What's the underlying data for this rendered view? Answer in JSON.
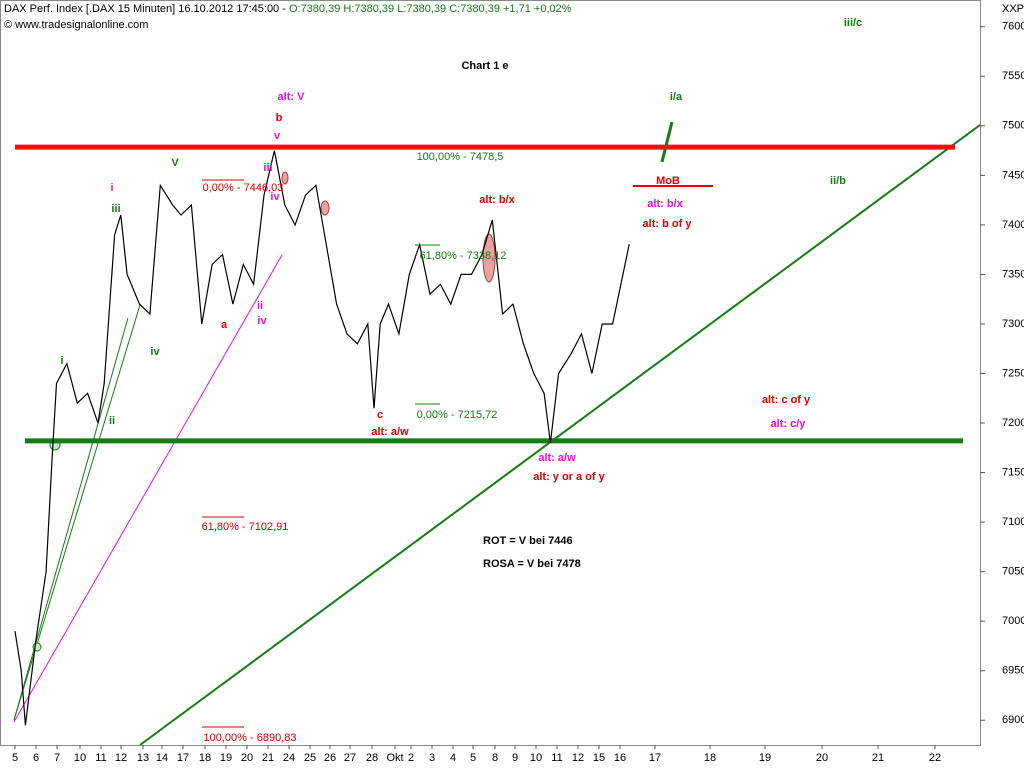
{
  "chart_data": {
    "type": "line",
    "header": "DAX Perf. Index [.DAX  15 Minuten] 16.10.2012 17:45:00 - ",
    "quote": "O:7380,39 H:7380,39 L:7380,39 C:7380,39 +1,71 +0,02%",
    "source": "© www.tradesignalonline.com",
    "axis_label": "XXP",
    "title": "Chart 1 e",
    "categories": [
      "5",
      "6",
      "7",
      "10",
      "11",
      "12",
      "13",
      "14",
      "17",
      "18",
      "19",
      "20",
      "21",
      "24",
      "25",
      "26",
      "27",
      "28",
      "Okt",
      "2",
      "3",
      "4",
      "5",
      "8",
      "9",
      "10",
      "11",
      "12",
      "15",
      "16",
      "17",
      "18",
      "19",
      "20",
      "21",
      "22"
    ],
    "ylim": [
      6875,
      7627
    ],
    "yticks": [
      6900,
      6950,
      7000,
      7050,
      7100,
      7150,
      7200,
      7250,
      7300,
      7350,
      7400,
      7450,
      7500,
      7550,
      7600
    ],
    "series": [
      {
        "name": "DAX",
        "color": "#000000",
        "x": [
          0,
          0.3,
          0.5,
          1,
          1.5,
          1.8,
          2,
          2.5,
          3,
          3.5,
          4,
          4.3,
          4.8,
          5.1,
          5.4,
          6,
          6.5,
          7,
          7.6,
          8,
          8.5,
          9,
          9.5,
          10,
          10.5,
          11,
          11.5,
          12,
          12.5,
          13,
          13.5,
          14,
          14.5,
          15,
          15.5,
          16,
          16.5,
          17,
          17.3,
          17.6,
          18,
          18.5,
          19,
          19.5,
          20,
          20.5,
          21,
          21.5,
          22,
          22.5,
          23,
          23.5,
          24,
          24.5,
          25,
          25.5,
          25.8,
          26.2,
          26.8,
          27.3,
          27.8,
          28.3,
          28.8,
          29.2,
          29.6
        ],
        "values": [
          6990,
          6950,
          6895,
          6980,
          7050,
          7170,
          7240,
          7260,
          7220,
          7230,
          7200,
          7240,
          7390,
          7410,
          7350,
          7320,
          7310,
          7440,
          7420,
          7410,
          7420,
          7300,
          7360,
          7370,
          7320,
          7360,
          7340,
          7430,
          7475,
          7420,
          7400,
          7430,
          7440,
          7380,
          7320,
          7290,
          7280,
          7300,
          7215,
          7300,
          7320,
          7290,
          7350,
          7380,
          7330,
          7340,
          7320,
          7350,
          7350,
          7370,
          7405,
          7310,
          7320,
          7280,
          7250,
          7230,
          7180,
          7250,
          7270,
          7290,
          7250,
          7300,
          7300,
          7340,
          7380.39
        ]
      }
    ],
    "levels": [
      {
        "value": 7478.5,
        "color": "#ee1111"
      },
      {
        "value": 7182,
        "color": "#137d13"
      }
    ],
    "fib_labels": [
      {
        "text": "100,00% - 7478,5",
        "color": "#137d13"
      },
      {
        "text": "0,00% - 7446,03",
        "color": "#d00000"
      },
      {
        "text": "61,80% - 7338,12",
        "color": "#137d13"
      },
      {
        "text": "0,00% - 7215,72",
        "color": "#137d13"
      },
      {
        "text": "61,80% - 7102,91",
        "color": "#d00000"
      },
      {
        "text": "100,00% - 6890,83",
        "color": "#d00000"
      }
    ],
    "annotations": [
      {
        "text": "alt: V",
        "color": "#e010e0"
      },
      {
        "text": "b",
        "color": "#e00000"
      },
      {
        "text": "v",
        "color": "#e010e0"
      },
      {
        "text": "iii",
        "color": "#e010e0"
      },
      {
        "text": "iv",
        "color": "#e010e0"
      },
      {
        "text": "V",
        "color": "#137d13"
      },
      {
        "text": "i",
        "color": "#e010e0"
      },
      {
        "text": "iii",
        "color": "#137d13"
      },
      {
        "text": "a",
        "color": "#e00000"
      },
      {
        "text": "ii",
        "color": "#e010e0"
      },
      {
        "text": "iv",
        "color": "#e010e0"
      },
      {
        "text": "iv",
        "color": "#137d13"
      },
      {
        "text": "i",
        "color": "#137d13"
      },
      {
        "text": "ii",
        "color": "#137d13"
      },
      {
        "text": "c",
        "color": "#e00000"
      },
      {
        "text": "alt: a/w",
        "color": "#e00000"
      },
      {
        "text": "alt: b/x",
        "color": "#e00000"
      },
      {
        "text": "i/a",
        "color": "#137d13"
      },
      {
        "text": "iii/c",
        "color": "#137d13"
      },
      {
        "text": "ii/b",
        "color": "#137d13"
      },
      {
        "text": "MoB",
        "color": "#e00000"
      },
      {
        "text": "alt: b/x",
        "color": "#e010e0"
      },
      {
        "text": "alt: b of y",
        "color": "#e00000"
      },
      {
        "text": "alt: c of y",
        "color": "#e00000"
      },
      {
        "text": "alt: c/y",
        "color": "#e010e0"
      },
      {
        "text": "alt: a/w",
        "color": "#e010e0"
      },
      {
        "text": "alt: y or a of y",
        "color": "#e00000"
      },
      {
        "text": "ROT = V bei 7446",
        "color": "#000000"
      },
      {
        "text": "ROSA = V bei 7478",
        "color": "#000000"
      }
    ]
  }
}
